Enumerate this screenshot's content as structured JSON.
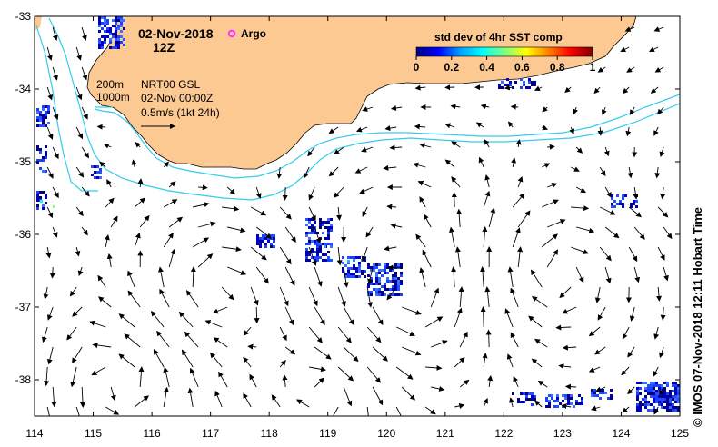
{
  "title": {
    "date": "02-Nov-2018",
    "hour": "12Z"
  },
  "legend": {
    "argo_label": "Argo",
    "argo_color": "#ff33ff"
  },
  "colorbar": {
    "title": "std dev of 4hr SST comp",
    "ticks": [
      "0",
      "0.2",
      "0.4",
      "0.6",
      "0.8",
      "1"
    ],
    "colors": [
      "#000080",
      "#0000ff",
      "#00a0ff",
      "#00ffff",
      "#80ff80",
      "#ffff00",
      "#ff8000",
      "#ff0000",
      "#800000"
    ]
  },
  "isobaths": {
    "shallow": "200m",
    "deep": "1000m",
    "color": "#33ccee"
  },
  "current_info": {
    "product": "NRT00 GSL",
    "time": "02-Nov 00:00Z",
    "scale": "0.5m/s (1kt 24h)"
  },
  "axes": {
    "x_ticks": [
      "114",
      "115",
      "116",
      "117",
      "118",
      "119",
      "120",
      "121",
      "122",
      "123",
      "124",
      "125"
    ],
    "y_ticks": [
      "-33",
      "-34",
      "-35",
      "-36",
      "-37",
      "-38"
    ],
    "xlim": [
      114,
      125
    ],
    "ylim": [
      -38.5,
      -33
    ]
  },
  "land_color": "#fcc993",
  "credit": "© IMOS 07-Nov-2018 12:11 Hobart Time"
}
